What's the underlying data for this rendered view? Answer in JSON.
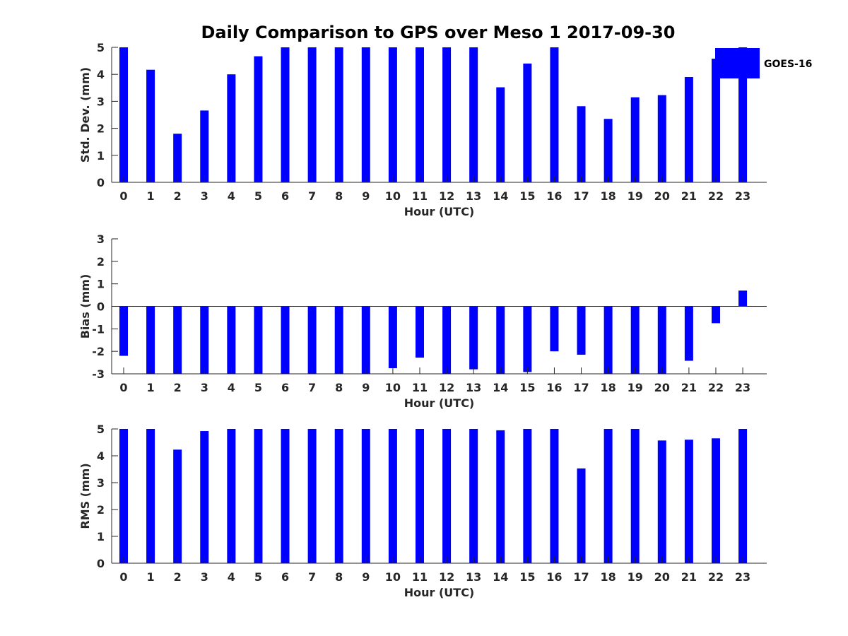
{
  "title": "Daily Comparison to GPS over Meso 1 2017-09-30",
  "colors": {
    "bar": "#0000ff",
    "axis": "#262626",
    "background": "#ffffff"
  },
  "legend": {
    "label": "GOES-16",
    "placement": "top-right"
  },
  "chart_data": [
    {
      "type": "bar",
      "ylabel": "Std. Dev. (mm)",
      "xlabel": "Hour (UTC)",
      "ylim": [
        0,
        5
      ],
      "yticks": [
        0,
        1,
        2,
        3,
        4,
        5
      ],
      "categories": [
        0,
        1,
        2,
        3,
        4,
        5,
        6,
        7,
        8,
        9,
        10,
        11,
        12,
        13,
        14,
        15,
        16,
        17,
        18,
        19,
        20,
        21,
        22,
        23
      ],
      "series": [
        {
          "name": "GOES-16",
          "values": [
            5,
            4.17,
            1.8,
            2.66,
            4,
            4.67,
            5,
            5,
            5,
            5,
            5,
            5,
            5,
            5,
            3.52,
            4.4,
            5,
            2.82,
            2.35,
            3.15,
            3.23,
            3.9,
            4.58,
            5
          ]
        }
      ]
    },
    {
      "type": "bar",
      "ylabel": "Bias (mm)",
      "xlabel": "Hour (UTC)",
      "ylim": [
        -3,
        3
      ],
      "yticks": [
        -3,
        -2,
        -1,
        0,
        1,
        2,
        3
      ],
      "categories": [
        0,
        1,
        2,
        3,
        4,
        5,
        6,
        7,
        8,
        9,
        10,
        11,
        12,
        13,
        14,
        15,
        16,
        17,
        18,
        19,
        20,
        21,
        22,
        23
      ],
      "series": [
        {
          "name": "GOES-16",
          "values": [
            -2.2,
            -3,
            -3,
            -3,
            -3,
            -3,
            -3,
            -3,
            -3,
            -3,
            -2.75,
            -2.28,
            -3,
            -2.8,
            -3,
            -2.92,
            -2,
            -2.15,
            -3,
            -3,
            -3,
            -2.42,
            -0.75,
            0.7
          ]
        }
      ]
    },
    {
      "type": "bar",
      "ylabel": "RMS (mm)",
      "xlabel": "Hour (UTC)",
      "ylim": [
        0,
        5
      ],
      "yticks": [
        0,
        1,
        2,
        3,
        4,
        5
      ],
      "categories": [
        0,
        1,
        2,
        3,
        4,
        5,
        6,
        7,
        8,
        9,
        10,
        11,
        12,
        13,
        14,
        15,
        16,
        17,
        18,
        19,
        20,
        21,
        22,
        23
      ],
      "series": [
        {
          "name": "GOES-16",
          "values": [
            5,
            5,
            4.23,
            4.92,
            5,
            5,
            5,
            5,
            5,
            5,
            5,
            5,
            5,
            5,
            4.95,
            5,
            5,
            3.53,
            5,
            5,
            4.57,
            4.6,
            4.65,
            5
          ]
        }
      ]
    }
  ]
}
